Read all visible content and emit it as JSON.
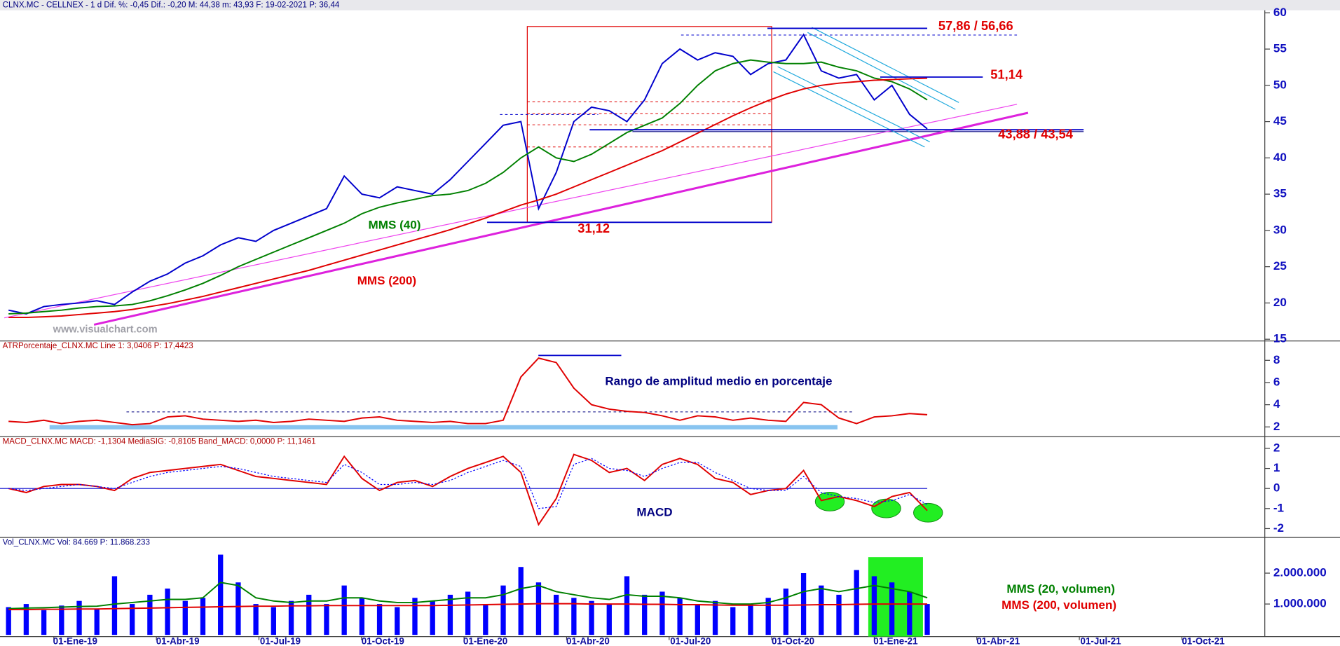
{
  "header": "CLNX.MC - CELLNEX  -  1 d  Dif. %: -0,45  Dif.: -0,20  M: 44,38  m: 43,93  F: 19-02-2021  P: 36,44",
  "x_axis": {
    "labels": [
      "01-Ene-19",
      "01-Abr-19",
      "01-Jul-19",
      "01-Oct-19",
      "01-Ene-20",
      "01-Abr-20",
      "01-Jul-20",
      "01-Oct-20",
      "01-Ene-21",
      "01-Abr-21",
      "01-Jul-21",
      "01-Oct-21"
    ]
  },
  "chart_data": [
    {
      "type": "line",
      "ylim": [
        15,
        60
      ],
      "yticks": [
        15,
        20,
        25,
        30,
        35,
        40,
        45,
        50,
        55,
        60
      ],
      "series": [
        {
          "color": "#0000cc",
          "values": [
            19.0,
            18.5,
            19.5,
            19.8,
            20.0,
            20.3,
            19.8,
            21.5,
            23.0,
            24.0,
            25.5,
            26.5,
            28.0,
            29.0,
            28.5,
            30.0,
            31.0,
            32.0,
            33.0,
            37.5,
            35.0,
            34.5,
            36.0,
            35.5,
            35.0,
            37.0,
            39.5,
            42.0,
            44.5,
            45.0,
            33.0,
            38.0,
            45.0,
            47.0,
            46.5,
            45.0,
            48.0,
            53.0,
            55.0,
            53.5,
            54.5,
            54.0,
            51.5,
            53.0,
            53.5,
            57.0,
            52.0,
            51.0,
            51.5,
            48.0,
            50.0,
            46.0,
            44.0
          ]
        },
        {
          "name": "MMS (40)",
          "color": "#008000",
          "values": [
            18.5,
            18.6,
            18.8,
            19.0,
            19.3,
            19.5,
            19.6,
            19.8,
            20.3,
            21.0,
            21.8,
            22.7,
            23.8,
            25.0,
            26.0,
            27.0,
            28.0,
            29.0,
            30.0,
            31.0,
            32.3,
            33.2,
            33.8,
            34.3,
            34.8,
            35.0,
            35.5,
            36.5,
            38.0,
            40.0,
            41.5,
            40.0,
            39.5,
            40.5,
            42.0,
            43.5,
            44.5,
            45.5,
            47.5,
            50.0,
            52.0,
            53.0,
            53.5,
            53.2,
            53.0,
            53.0,
            53.2,
            52.5,
            52.0,
            51.0,
            50.5,
            49.5,
            48.0
          ]
        },
        {
          "name": "MMS (200)",
          "color": "#e00000",
          "values": [
            18.0,
            18.0,
            18.1,
            18.2,
            18.4,
            18.6,
            18.8,
            19.1,
            19.5,
            19.9,
            20.4,
            20.9,
            21.5,
            22.1,
            22.7,
            23.3,
            23.9,
            24.5,
            25.2,
            25.9,
            26.6,
            27.3,
            28.0,
            28.7,
            29.4,
            30.1,
            30.9,
            31.7,
            32.6,
            33.5,
            34.2,
            35.0,
            36.0,
            37.0,
            38.0,
            39.0,
            40.0,
            41.0,
            42.2,
            43.4,
            44.6,
            45.8,
            46.9,
            47.9,
            48.8,
            49.5,
            50.0,
            50.3,
            50.5,
            50.7,
            50.8,
            50.9,
            51.0
          ]
        }
      ],
      "levels": [
        {
          "value": 57.86,
          "label": "57,86 / 56,66"
        },
        {
          "value": 51.14,
          "label": "51,14"
        },
        {
          "value": 43.88,
          "label": "43,88 / 43,54"
        },
        {
          "value": 31.12,
          "label": "31,12"
        }
      ],
      "watermark": "www.visualchart.com"
    },
    {
      "type": "line",
      "title": "ATRPorcentaje_CLNX.MC  Line 1: 3,0406  P: 17,4423",
      "ylim": [
        1.2,
        8.9
      ],
      "yticks": [
        2,
        4,
        6,
        8
      ],
      "series": [
        {
          "color": "#e00000",
          "values": [
            2.5,
            2.4,
            2.6,
            2.3,
            2.5,
            2.6,
            2.4,
            2.2,
            2.3,
            2.9,
            3.0,
            2.7,
            2.6,
            2.5,
            2.6,
            2.4,
            2.5,
            2.7,
            2.6,
            2.5,
            2.8,
            2.9,
            2.6,
            2.5,
            2.4,
            2.5,
            2.3,
            2.3,
            2.6,
            6.5,
            8.2,
            7.8,
            5.5,
            4.0,
            3.6,
            3.4,
            3.3,
            3.0,
            2.6,
            3.0,
            2.9,
            2.6,
            2.8,
            2.6,
            2.5,
            4.2,
            4.0,
            2.8,
            2.3,
            2.9,
            3.0,
            3.2,
            3.1
          ]
        }
      ],
      "annotation": "Rango de amplitud medio en porcentaje"
    },
    {
      "type": "line",
      "title": "MACD_CLNX.MC  MACD: -1,1304  MediaSIG: -0,8105  Band_MACD: 0,0000  P: 11,1461",
      "ylim": [
        -2.4,
        2.5
      ],
      "yticks": [
        -2,
        -1,
        0,
        1,
        2
      ],
      "series": [
        {
          "color": "#e00000",
          "values": [
            0.0,
            -0.2,
            0.1,
            0.2,
            0.2,
            0.1,
            -0.1,
            0.5,
            0.8,
            0.9,
            1.0,
            1.1,
            1.2,
            0.9,
            0.6,
            0.5,
            0.4,
            0.3,
            0.2,
            1.6,
            0.5,
            -0.1,
            0.3,
            0.4,
            0.1,
            0.6,
            1.0,
            1.3,
            1.6,
            0.8,
            -1.8,
            -0.5,
            1.7,
            1.4,
            0.8,
            1.0,
            0.4,
            1.2,
            1.5,
            1.2,
            0.5,
            0.3,
            -0.3,
            -0.1,
            0.0,
            0.9,
            -0.6,
            -0.4,
            -0.6,
            -0.9,
            -0.4,
            -0.2,
            -1.1
          ]
        },
        {
          "color": "#0000ff",
          "dashed": true,
          "values": [
            0.0,
            -0.1,
            0.0,
            0.1,
            0.2,
            0.1,
            0.0,
            0.3,
            0.6,
            0.8,
            0.9,
            1.0,
            1.1,
            1.0,
            0.8,
            0.6,
            0.5,
            0.4,
            0.3,
            1.2,
            0.8,
            0.2,
            0.2,
            0.3,
            0.2,
            0.4,
            0.8,
            1.1,
            1.4,
            1.1,
            -1.0,
            -0.9,
            1.2,
            1.5,
            1.0,
            0.9,
            0.6,
            1.0,
            1.3,
            1.3,
            0.8,
            0.4,
            0.0,
            -0.1,
            -0.1,
            0.6,
            -0.2,
            -0.4,
            -0.5,
            -0.7,
            -0.6,
            -0.3,
            -0.8
          ]
        }
      ],
      "zero_line": true,
      "annotation": "MACD"
    },
    {
      "type": "bar",
      "title": "Vol_CLNX.MC  Vol: 84.669  P: 11.868.233",
      "ylim": [
        0,
        3100000
      ],
      "yticks": [
        {
          "value": 1000000,
          "label": "1.000.000"
        },
        {
          "value": 2000000,
          "label": "2.000.000"
        }
      ],
      "color": "#0000ff",
      "values": [
        900000,
        1000000,
        800000,
        950000,
        1100000,
        850000,
        1900000,
        1000000,
        1300000,
        1500000,
        1100000,
        1200000,
        2600000,
        1700000,
        1000000,
        900000,
        1100000,
        1300000,
        1000000,
        1600000,
        1200000,
        1000000,
        900000,
        1200000,
        1100000,
        1300000,
        1400000,
        1000000,
        1600000,
        2200000,
        1700000,
        1300000,
        1200000,
        1100000,
        1000000,
        1900000,
        1300000,
        1400000,
        1200000,
        1000000,
        1100000,
        900000,
        1000000,
        1200000,
        1500000,
        2000000,
        1600000,
        1300000,
        2100000,
        1900000,
        1700000,
        1400000,
        1000000
      ],
      "series": [
        {
          "name": "MMS (20, volumen)",
          "color": "#008000",
          "values": [
            850000,
            870000,
            880000,
            900000,
            920000,
            930000,
            1000000,
            1050000,
            1100000,
            1150000,
            1150000,
            1200000,
            1700000,
            1600000,
            1200000,
            1100000,
            1050000,
            1100000,
            1100000,
            1200000,
            1200000,
            1100000,
            1050000,
            1050000,
            1100000,
            1150000,
            1200000,
            1200000,
            1300000,
            1500000,
            1600000,
            1400000,
            1300000,
            1200000,
            1150000,
            1300000,
            1250000,
            1250000,
            1200000,
            1100000,
            1050000,
            1000000,
            1000000,
            1050000,
            1200000,
            1400000,
            1500000,
            1400000,
            1500000,
            1600000,
            1500000,
            1400000,
            1200000
          ]
        },
        {
          "name": "MMS (200, volumen)",
          "color": "#e00000",
          "values": [
            820000,
            820000,
            830000,
            830000,
            840000,
            840000,
            850000,
            860000,
            870000,
            880000,
            890000,
            900000,
            910000,
            920000,
            930000,
            930000,
            940000,
            940000,
            950000,
            950000,
            950000,
            950000,
            950000,
            950000,
            950000,
            960000,
            970000,
            980000,
            990000,
            1000000,
            1010000,
            1010000,
            1010000,
            1000000,
            1000000,
            1000000,
            990000,
            990000,
            980000,
            980000,
            970000,
            960000,
            960000,
            960000,
            960000,
            970000,
            980000,
            980000,
            990000,
            1000000,
            1000000,
            1000000,
            1000000
          ]
        }
      ]
    }
  ]
}
